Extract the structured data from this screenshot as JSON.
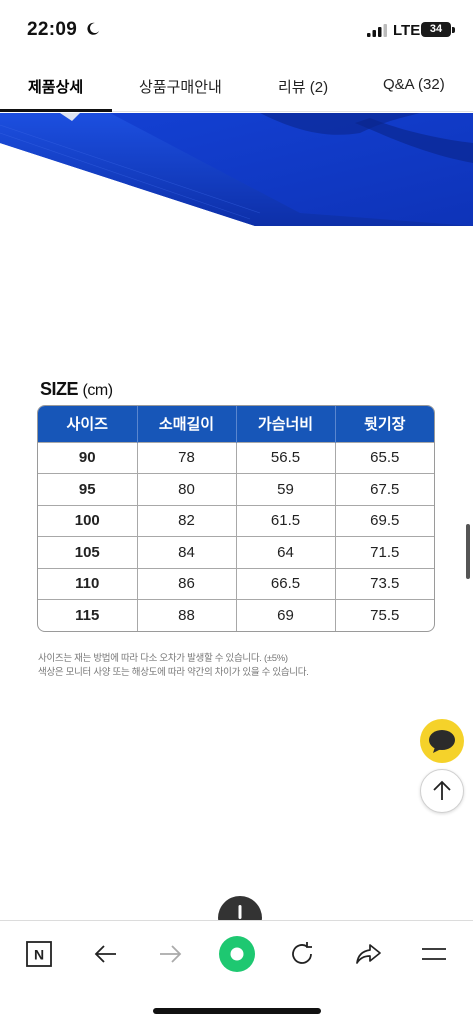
{
  "status_bar": {
    "time": "22:09",
    "network": "LTE",
    "battery": "34",
    "icons": [
      "moon-icon",
      "signal-icon",
      "battery-icon"
    ]
  },
  "tabs": [
    {
      "label": "제품상세",
      "active": true
    },
    {
      "label": "상품구매안내",
      "active": false
    },
    {
      "label": "리뷰 (2)",
      "active": false
    },
    {
      "label": "Q&A (32)",
      "active": false
    }
  ],
  "size_section": {
    "title": "SIZE",
    "unit": "(cm)",
    "headers": [
      "사이즈",
      "소매길이",
      "가슴너비",
      "뒷기장"
    ],
    "rows": [
      [
        "90",
        "78",
        "56.5",
        "65.5"
      ],
      [
        "95",
        "80",
        "59",
        "67.5"
      ],
      [
        "100",
        "82",
        "61.5",
        "69.5"
      ],
      [
        "105",
        "84",
        "64",
        "71.5"
      ],
      [
        "110",
        "86",
        "66.5",
        "73.5"
      ],
      [
        "115",
        "88",
        "69",
        "75.5"
      ]
    ],
    "notes": [
      "사이즈는 재는 방법에 따라 다소 오차가 발생할 수 있습니다. (±5%)",
      "색상은 모니터 사양 또는 해상도에 따라 약간의 차이가 있을 수 있습니다."
    ]
  },
  "colors": {
    "accent_blue": "#1756b8",
    "product_blue": "#1240c8",
    "chat_yellow": "#f5d22a",
    "browser_green": "#1ec871"
  },
  "floating_buttons": [
    "chat-icon",
    "arrow-up-icon"
  ],
  "bottom_bar": {
    "icons": [
      "naver-n-icon",
      "back-arrow-icon",
      "forward-arrow-icon",
      "green-dot-icon",
      "refresh-icon",
      "share-icon",
      "menu-icon"
    ],
    "logo_letter": "N"
  }
}
